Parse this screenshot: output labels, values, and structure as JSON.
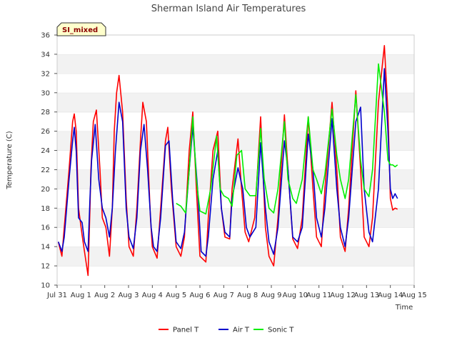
{
  "chart_data": {
    "type": "line",
    "title": "Sherman Island Air Temperatures",
    "xlabel": "Time",
    "ylabel": "Temperature (C)",
    "badge": "SI_mixed",
    "ylim": [
      10,
      36
    ],
    "y_ticks": [
      10,
      12,
      14,
      16,
      18,
      20,
      22,
      24,
      26,
      28,
      30,
      32,
      34,
      36
    ],
    "xlim": [
      0,
      15
    ],
    "x_ticks": [
      0,
      1,
      2,
      3,
      4,
      5,
      6,
      7,
      8,
      9,
      10,
      11,
      12,
      13,
      14,
      15
    ],
    "x_tick_labels": [
      "Jul 31",
      "Aug 1",
      "Aug 2",
      "Aug 3",
      "Aug 4",
      "Aug 5",
      "Aug 6",
      "Aug 7",
      "Aug 8",
      "Aug 9",
      "Aug 10",
      "Aug 11",
      "Aug 12",
      "Aug 13",
      "Aug 14",
      "Aug 15"
    ],
    "x_unit_note": "x values are days after Jul 31 00:00",
    "grid": "horizontal bands",
    "legend_position": "bottom-center",
    "series": [
      {
        "name": "Panel T",
        "color": "#ff0000",
        "x": [
          0.05,
          0.2,
          0.3,
          0.5,
          0.65,
          0.72,
          0.8,
          0.9,
          1.05,
          1.15,
          1.3,
          1.38,
          1.42,
          1.52,
          1.65,
          1.8,
          1.9,
          2.05,
          2.2,
          2.32,
          2.4,
          2.5,
          2.6,
          2.75,
          2.9,
          3.02,
          3.2,
          3.35,
          3.5,
          3.6,
          3.75,
          3.92,
          4.0,
          4.2,
          4.35,
          4.55,
          4.65,
          4.8,
          5.0,
          5.2,
          5.35,
          5.55,
          5.7,
          5.85,
          6.0,
          6.25,
          6.35,
          6.55,
          6.75,
          6.9,
          7.05,
          7.25,
          7.35,
          7.6,
          7.75,
          7.9,
          8.05,
          8.3,
          8.55,
          8.75,
          8.9,
          9.1,
          9.28,
          9.55,
          9.7,
          9.9,
          10.1,
          10.3,
          10.55,
          10.75,
          10.9,
          11.1,
          11.25,
          11.55,
          11.75,
          11.9,
          12.1,
          12.25,
          12.55,
          12.75,
          12.9,
          13.1,
          13.25,
          13.5,
          13.75,
          13.9,
          14.0,
          14.1,
          14.2,
          14.3
        ],
        "values": [
          14.5,
          13.0,
          16.0,
          22.0,
          27.0,
          27.8,
          26.0,
          18.0,
          15.2,
          13.5,
          11.0,
          18.0,
          22.0,
          27.0,
          28.2,
          22.0,
          17.0,
          16.0,
          13.0,
          18.0,
          26.0,
          30.0,
          31.8,
          28.0,
          19.0,
          14.0,
          13.0,
          18.0,
          25.0,
          29.0,
          27.0,
          17.0,
          14.0,
          12.8,
          18.0,
          25.0,
          26.4,
          20.0,
          14.0,
          13.0,
          15.0,
          24.0,
          28.0,
          20.0,
          13.0,
          12.4,
          17.0,
          24.0,
          26.0,
          18.0,
          15.0,
          14.8,
          20.0,
          25.2,
          20.0,
          15.5,
          14.5,
          17.0,
          27.5,
          16.0,
          13.0,
          12.0,
          17.0,
          27.7,
          22.0,
          14.8,
          13.8,
          17.0,
          27.5,
          20.0,
          15.0,
          14.0,
          20.0,
          29.0,
          22.0,
          15.0,
          13.5,
          18.0,
          30.2,
          22.0,
          15.0,
          14.0,
          17.0,
          29.0,
          34.9,
          28.0,
          19.0,
          17.8,
          18.0,
          17.9
        ]
      },
      {
        "name": "Air T",
        "color": "#0000cc",
        "x": [
          0.05,
          0.2,
          0.3,
          0.5,
          0.65,
          0.72,
          0.8,
          0.9,
          1.05,
          1.15,
          1.3,
          1.38,
          1.45,
          1.6,
          1.75,
          1.9,
          2.05,
          2.2,
          2.32,
          2.45,
          2.6,
          2.75,
          2.9,
          3.02,
          3.2,
          3.35,
          3.5,
          3.65,
          3.8,
          3.95,
          4.05,
          4.2,
          4.35,
          4.55,
          4.7,
          4.85,
          5.0,
          5.2,
          5.35,
          5.55,
          5.7,
          5.9,
          6.05,
          6.25,
          6.35,
          6.55,
          6.75,
          6.9,
          7.05,
          7.25,
          7.35,
          7.6,
          7.8,
          7.95,
          8.1,
          8.35,
          8.55,
          8.75,
          8.9,
          9.1,
          9.28,
          9.55,
          9.7,
          9.9,
          10.1,
          10.3,
          10.55,
          10.75,
          10.9,
          11.1,
          11.25,
          11.55,
          11.75,
          11.9,
          12.1,
          12.25,
          12.55,
          12.75,
          12.9,
          13.1,
          13.25,
          13.5,
          13.75,
          13.9,
          14.0,
          14.1,
          14.2,
          14.3
        ],
        "values": [
          14.5,
          13.5,
          15.0,
          21.0,
          25.0,
          26.4,
          24.0,
          17.0,
          16.5,
          14.5,
          13.5,
          19.0,
          23.0,
          26.7,
          21.0,
          18.0,
          17.0,
          15.0,
          18.0,
          24.0,
          29.0,
          27.0,
          18.0,
          15.0,
          13.8,
          17.0,
          24.0,
          26.7,
          22.0,
          16.0,
          14.0,
          13.5,
          17.0,
          24.5,
          25.0,
          19.0,
          14.5,
          13.8,
          15.5,
          22.0,
          26.5,
          20.0,
          13.5,
          13.0,
          15.0,
          21.0,
          24.0,
          18.0,
          15.5,
          15.0,
          19.0,
          22.2,
          20.0,
          16.0,
          15.0,
          16.0,
          24.8,
          18.0,
          14.5,
          13.2,
          16.0,
          25.0,
          22.0,
          15.0,
          14.5,
          16.0,
          25.7,
          22.0,
          17.0,
          15.0,
          18.0,
          27.3,
          20.0,
          16.0,
          14.0,
          17.0,
          27.0,
          28.5,
          20.0,
          15.5,
          14.5,
          20.0,
          32.5,
          26.0,
          20.0,
          19.0,
          19.5,
          19.0
        ]
      },
      {
        "name": "Sonic T",
        "color": "#00ee00",
        "x": [
          5.0,
          5.2,
          5.4,
          5.55,
          5.7,
          5.85,
          6.0,
          6.25,
          6.45,
          6.7,
          6.85,
          7.0,
          7.2,
          7.35,
          7.55,
          7.75,
          7.9,
          8.1,
          8.35,
          8.55,
          8.7,
          8.9,
          9.1,
          9.28,
          9.55,
          9.7,
          9.9,
          10.05,
          10.3,
          10.55,
          10.75,
          10.9,
          11.1,
          11.25,
          11.55,
          11.75,
          11.9,
          12.1,
          12.25,
          12.55,
          12.75,
          12.9,
          13.1,
          13.25,
          13.5,
          13.75,
          13.9,
          14.0,
          14.1,
          14.2,
          14.3
        ],
        "values": [
          18.5,
          18.2,
          17.5,
          22.0,
          27.5,
          21.0,
          17.7,
          17.4,
          20.0,
          25.5,
          20.0,
          19.3,
          19.0,
          18.2,
          23.5,
          24.0,
          20.0,
          19.3,
          19.3,
          26.3,
          21.0,
          18.0,
          17.5,
          20.0,
          27.0,
          21.0,
          19.0,
          18.5,
          21.0,
          27.5,
          22.0,
          21.0,
          19.5,
          21.5,
          28.3,
          23.5,
          21.0,
          19.0,
          21.0,
          29.8,
          23.0,
          20.0,
          19.2,
          22.0,
          33.0,
          28.0,
          23.0,
          22.5,
          22.5,
          22.3,
          22.5
        ]
      }
    ]
  }
}
